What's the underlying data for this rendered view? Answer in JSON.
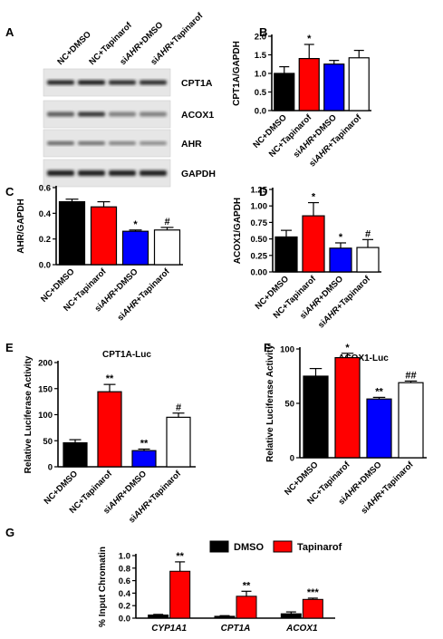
{
  "colors": {
    "black": "#000000",
    "red": "#ff0000",
    "blue": "#0000ff",
    "white": "#ffffff"
  },
  "panel_a": {
    "label": "A",
    "lanes": [
      "NC+DMSO",
      "NC+Tapinarof",
      "siAHR+DMSO",
      "siAHR+Tapinarof"
    ],
    "bands": [
      "CPT1A",
      "ACOX1",
      "AHR",
      "GAPDH"
    ]
  },
  "chart_data": [
    {
      "panel": "B",
      "type": "bar",
      "categories": [
        "NC+DMSO",
        "NC+Tapinarof",
        "siAHR+DMSO",
        "siAHR+Tapinarof"
      ],
      "values": [
        1.0,
        1.4,
        1.25,
        1.42
      ],
      "errors": [
        0.18,
        0.38,
        0.1,
        0.2
      ],
      "marks": [
        "",
        "*",
        "",
        ""
      ],
      "fills": [
        "#000000",
        "#ff0000",
        "#0000ff",
        "#ffffff"
      ],
      "title": "",
      "xlabel": "",
      "ylabel": "CPT1A/GAPDH",
      "ylim": [
        0,
        2.0
      ],
      "yticks": [
        "0.0",
        "0.5",
        "1.0",
        "1.5",
        "2.0"
      ]
    },
    {
      "panel": "C",
      "type": "bar",
      "categories": [
        "NC+DMSO",
        "NC+Tapinarof",
        "siAHR+DMSO",
        "siAHR+Tapinarof"
      ],
      "values": [
        0.49,
        0.45,
        0.26,
        0.27
      ],
      "errors": [
        0.02,
        0.04,
        0.01,
        0.02
      ],
      "marks": [
        "",
        "",
        "*",
        "#"
      ],
      "fills": [
        "#000000",
        "#ff0000",
        "#0000ff",
        "#ffffff"
      ],
      "title": "",
      "xlabel": "",
      "ylabel": "AHR/GAPDH",
      "ylim": [
        0,
        0.6
      ],
      "yticks": [
        "0.0",
        "0.2",
        "0.4",
        "0.6"
      ]
    },
    {
      "panel": "D",
      "type": "bar",
      "categories": [
        "NC+DMSO",
        "NC+Tapinarof",
        "siAHR+DMSO",
        "siAHR+Tapinarof"
      ],
      "values": [
        0.53,
        0.85,
        0.36,
        0.37
      ],
      "errors": [
        0.1,
        0.2,
        0.08,
        0.12
      ],
      "marks": [
        "",
        "*",
        "*",
        "#"
      ],
      "fills": [
        "#000000",
        "#ff0000",
        "#0000ff",
        "#ffffff"
      ],
      "title": "",
      "xlabel": "",
      "ylabel": "ACOX1/GAPDH",
      "ylim": [
        0,
        1.25
      ],
      "yticks": [
        "0.00",
        "0.25",
        "0.50",
        "0.75",
        "1.00",
        "1.25"
      ]
    },
    {
      "panel": "E",
      "type": "bar",
      "categories": [
        "NC+DMSO",
        "NC+Tapinarof",
        "siAHR+DMSO",
        "siAHR+Tapinarof"
      ],
      "values": [
        46,
        144,
        31,
        95
      ],
      "errors": [
        6,
        14,
        3,
        8
      ],
      "marks": [
        "",
        "**",
        "**",
        "#"
      ],
      "fills": [
        "#000000",
        "#ff0000",
        "#0000ff",
        "#ffffff"
      ],
      "title": "CPT1A-Luc",
      "xlabel": "",
      "ylabel": "Relative Luciferase Activity",
      "ylim": [
        0,
        200
      ],
      "yticks": [
        "0",
        "50",
        "100",
        "150",
        "200"
      ]
    },
    {
      "panel": "F",
      "type": "bar",
      "categories": [
        "NC+DMSO",
        "NC+Tapinarof",
        "siAHR+DMSO",
        "siAHR+Tapinarof"
      ],
      "values": [
        75,
        92,
        54,
        69
      ],
      "errors": [
        7,
        4,
        1.5,
        1.5
      ],
      "marks": [
        "",
        "*",
        "**",
        "##"
      ],
      "fills": [
        "#000000",
        "#ff0000",
        "#0000ff",
        "#ffffff"
      ],
      "title": "ACOX1-Luc",
      "xlabel": "",
      "ylabel": "Relative Luciferase Activity",
      "ylim": [
        0,
        100
      ],
      "yticks": [
        "0",
        "50",
        "100"
      ]
    },
    {
      "panel": "G",
      "type": "bar",
      "categories": [
        "CYP1A1",
        "CPT1A",
        "ACOX1"
      ],
      "series": [
        {
          "name": "DMSO",
          "color": "#000000",
          "values": [
            0.05,
            0.03,
            0.07
          ],
          "errors": [
            0.01,
            0.01,
            0.03
          ],
          "marks": [
            "",
            "",
            ""
          ]
        },
        {
          "name": "Tapinarof",
          "color": "#ff0000",
          "values": [
            0.75,
            0.35,
            0.3
          ],
          "errors": [
            0.15,
            0.08,
            0.02
          ],
          "marks": [
            "**",
            "**",
            "***"
          ]
        }
      ],
      "title": "",
      "xlabel": "",
      "ylabel": "% Input Chromatin",
      "ylim": [
        0,
        1.0
      ],
      "yticks": [
        "0.0",
        "0.2",
        "0.4",
        "0.6",
        "0.8",
        "1.0"
      ]
    }
  ]
}
